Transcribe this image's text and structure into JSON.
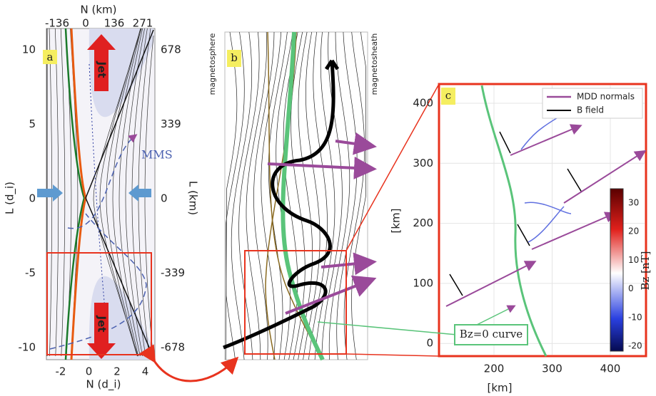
{
  "panel_a": {
    "label": "a",
    "top_axis": {
      "title": "N (km)",
      "ticks": [
        "-136",
        "0",
        "136",
        "271"
      ]
    },
    "bottom_axis": {
      "title": "N (d_i)",
      "ticks": [
        "-2",
        "0",
        "2",
        "4"
      ]
    },
    "left_axis": {
      "title": "L (d_i)",
      "ticks": [
        "10",
        "5",
        "0",
        "-5",
        "-10"
      ]
    },
    "right_axis": {
      "title": "L (km)",
      "ticks": [
        "678",
        "339",
        "0",
        "-339",
        "-678"
      ]
    },
    "jet_labels": [
      "Jet",
      "Jet"
    ],
    "spacecraft": "MMS"
  },
  "panel_b": {
    "label": "b",
    "left_region": "magnetosphere",
    "right_region": "magnetosheath"
  },
  "panel_c": {
    "label": "c",
    "x_axis": {
      "title": "[km]",
      "ticks": [
        "200",
        "300",
        "400"
      ]
    },
    "y_axis": {
      "title": "[km]",
      "ticks": [
        "400",
        "300",
        "200",
        "100",
        "0"
      ]
    },
    "legend": [
      "MDD normals",
      "B field"
    ],
    "colorbar": {
      "title": "Bz [nT]",
      "ticks": [
        "30",
        "20",
        "10",
        "0",
        "-10",
        "-20"
      ]
    },
    "annotation": "Bz=0 curve"
  }
}
